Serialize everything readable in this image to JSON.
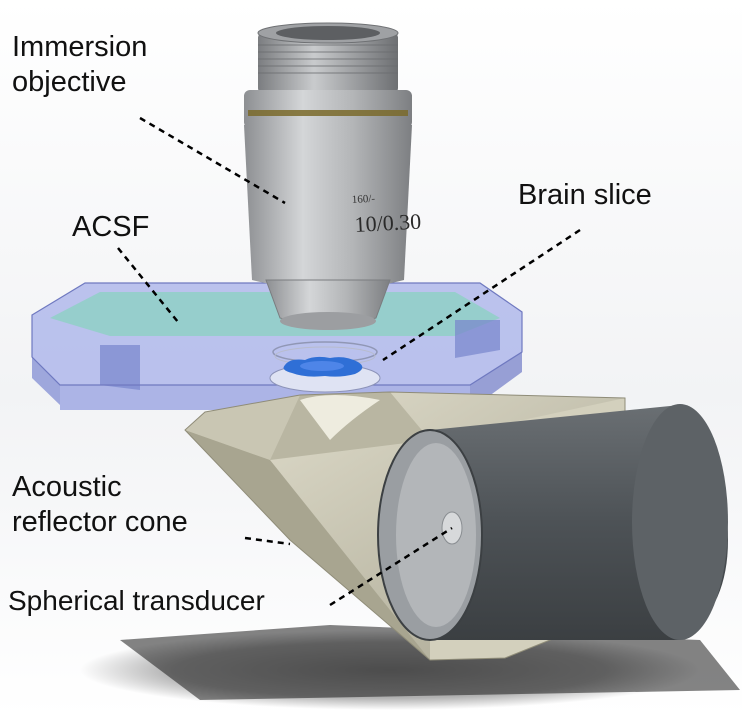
{
  "labels": {
    "immersion_objective": [
      "Immersion",
      "objective"
    ],
    "brain_slice": "Brain slice",
    "acsf": "ACSF",
    "reflector": [
      "Acoustic",
      "reflector cone"
    ],
    "transducer": "Spherical transducer"
  },
  "objective_markings": {
    "line1": "160/-",
    "line2": "10/0.30"
  },
  "colors": {
    "objective_body": "#b4b6b8",
    "acsf_fluid": "#8fd0c6",
    "chamber": "#9ea9e6",
    "brain_slice": "#2f6fd6",
    "reflector": "#d6d3c2",
    "transducer_housing": "#555a5e",
    "leader_line": "#000000"
  }
}
